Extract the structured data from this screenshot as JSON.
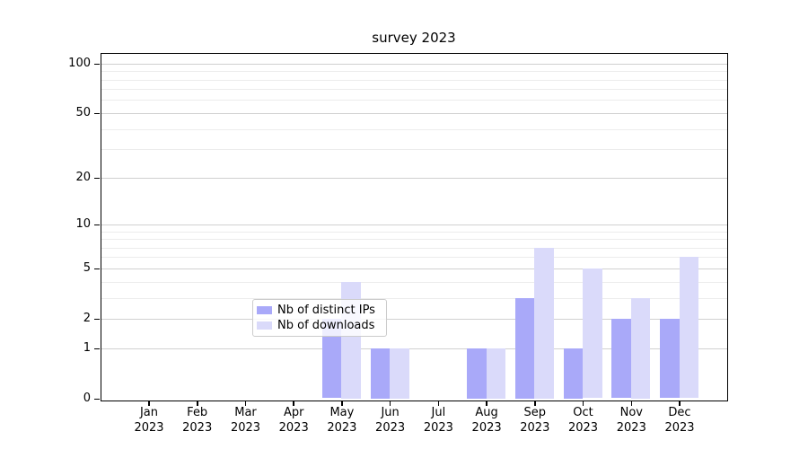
{
  "title": "survey 2023",
  "colors": {
    "ips_bar": "#a9a9f9",
    "downloads_bar": "#dadafa",
    "grid_major": "#d0d0d0",
    "grid_minor": "#ececec",
    "axis": "#000000",
    "legend_border": "#cccccc"
  },
  "legend": {
    "items": [
      {
        "label": "Nb of distinct IPs",
        "color_key": "ips_bar"
      },
      {
        "label": "Nb of downloads",
        "color_key": "downloads_bar"
      }
    ]
  },
  "chart_data": {
    "type": "bar",
    "title": "survey 2023",
    "categories": [
      "Jan 2023",
      "Feb 2023",
      "Mar 2023",
      "Apr 2023",
      "May 2023",
      "Jun 2023",
      "Jul 2023",
      "Aug 2023",
      "Sep 2023",
      "Oct 2023",
      "Nov 2023",
      "Dec 2023"
    ],
    "x_months": [
      "Jan",
      "Feb",
      "Mar",
      "Apr",
      "May",
      "Jun",
      "Jul",
      "Aug",
      "Sep",
      "Oct",
      "Nov",
      "Dec"
    ],
    "x_year": "2023",
    "series": [
      {
        "name": "Nb of distinct IPs",
        "values": [
          0,
          0,
          0,
          0,
          2,
          1,
          0,
          1,
          3,
          1,
          2,
          2
        ]
      },
      {
        "name": "Nb of downloads",
        "values": [
          0,
          0,
          0,
          0,
          4,
          1,
          0,
          1,
          7,
          5,
          3,
          6
        ]
      }
    ],
    "xlabel": "",
    "ylabel": "",
    "y_scale": "log1p",
    "ylim": [
      0,
      115
    ],
    "y_major_ticks": [
      0,
      1,
      2,
      5,
      10,
      20,
      50,
      100
    ],
    "y_minor_ticks": [
      3,
      4,
      6,
      7,
      8,
      9,
      30,
      40,
      60,
      70,
      80,
      90
    ],
    "grid": true,
    "legend_position": "lower center"
  }
}
